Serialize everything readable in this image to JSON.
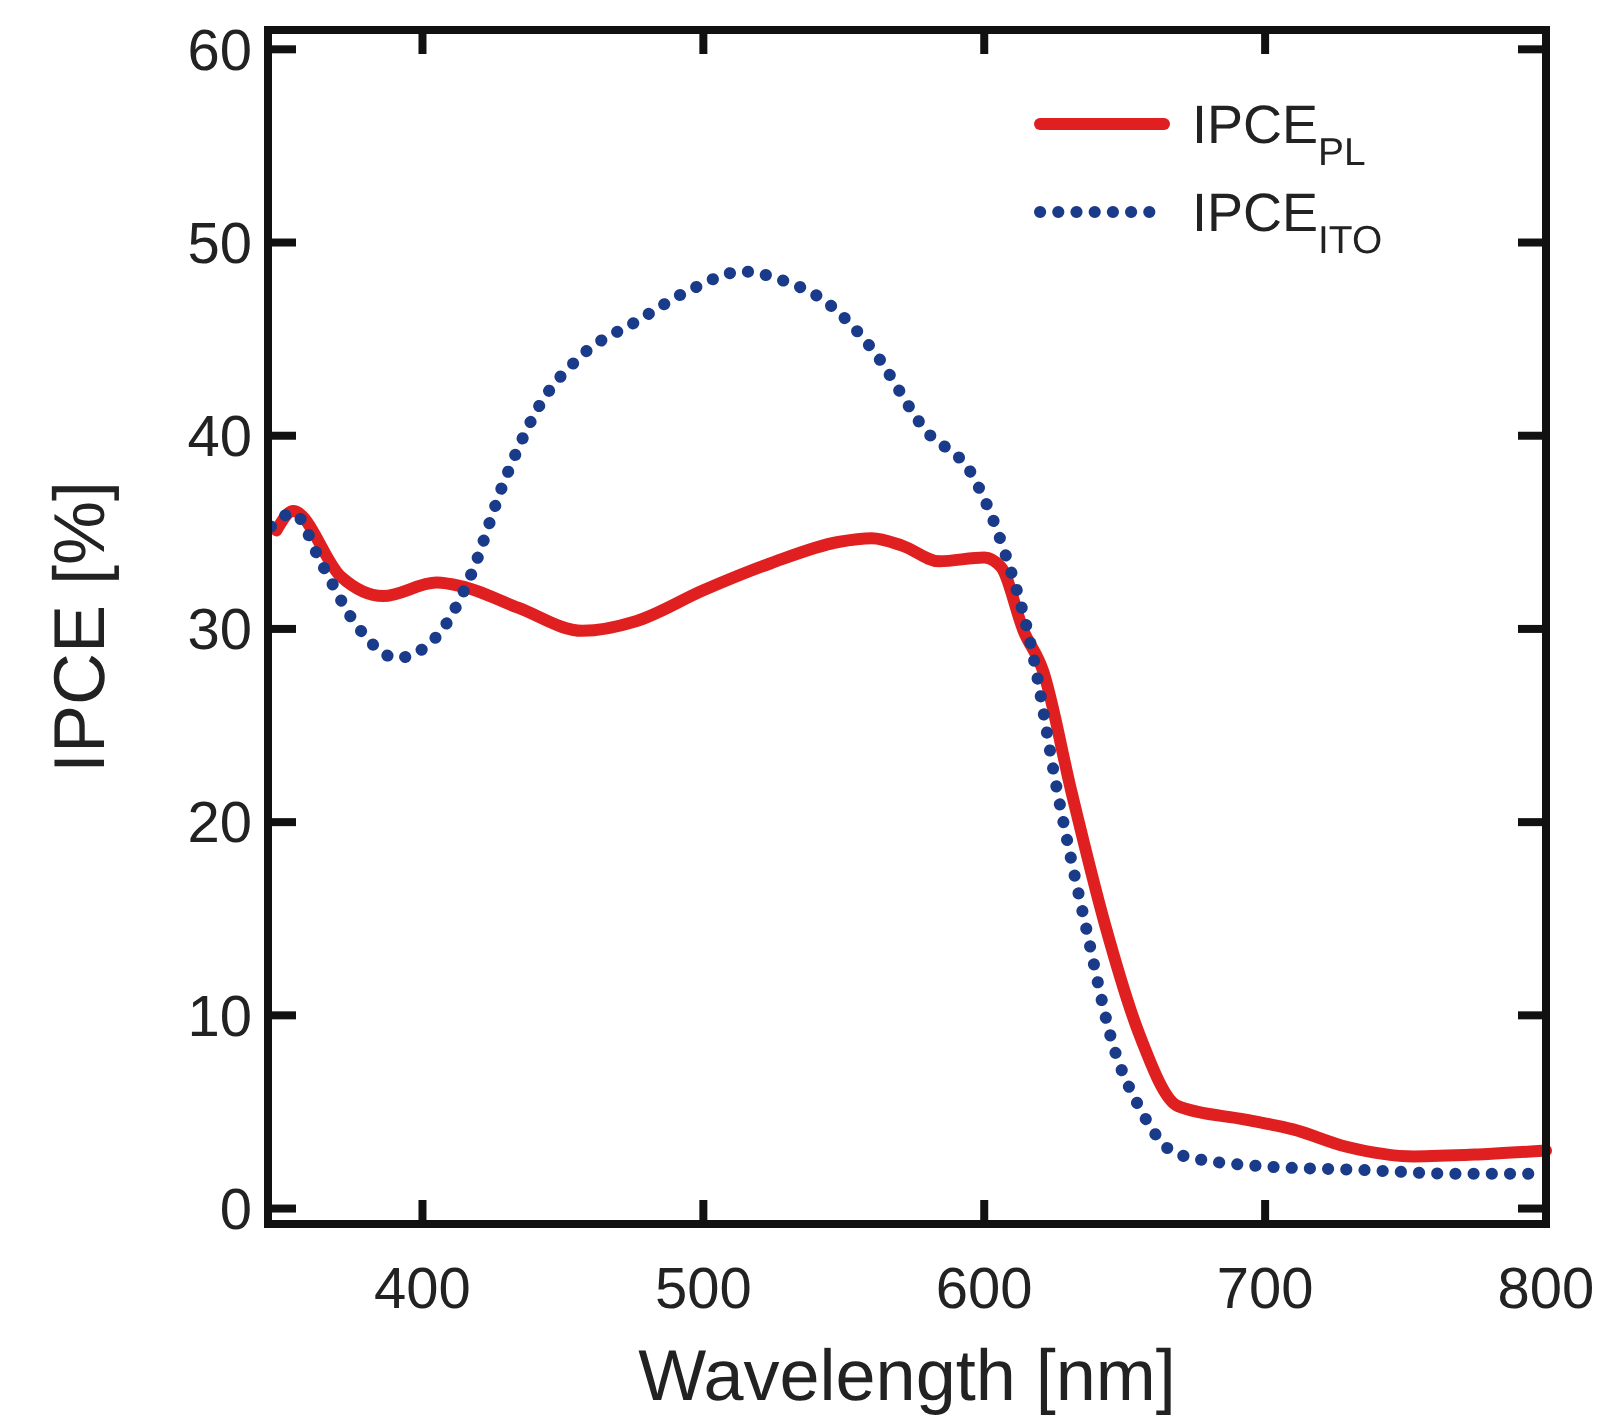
{
  "chart_data": {
    "type": "line",
    "xlabel": "Wavelength [nm]",
    "ylabel": "IPCE [%]",
    "xlim": [
      345,
      800
    ],
    "ylim": [
      -0.8,
      61
    ],
    "xticks": [
      400,
      500,
      600,
      700,
      800
    ],
    "yticks": [
      0,
      10,
      20,
      30,
      40,
      50,
      60
    ],
    "legend": "top right",
    "grid": false,
    "series": [
      {
        "name": "IPCE$_{PL}$",
        "color": "#e02020",
        "line_style": "solid",
        "x": [
          348,
          354,
          371,
          386,
          405,
          414,
          434,
          457,
          476,
          500,
          524,
          548,
          560,
          571,
          584,
          600,
          606,
          614,
          621,
          631,
          643,
          655,
          669,
          693,
          710,
          729,
          753,
          776,
          800
        ],
        "values": [
          35.1,
          36.1,
          32.7,
          31.7,
          32.4,
          32.2,
          31.1,
          29.9,
          30.4,
          32,
          33.4,
          34.5,
          34.7,
          34.3,
          33.5,
          33.7,
          33.2,
          29.9,
          27.8,
          21.6,
          14.7,
          9.1,
          5.3,
          4.6,
          4.1,
          3.2,
          2.7,
          2.8,
          3.0
        ]
      },
      {
        "name": "IPCE$_{ITO}$",
        "color": "#1a3a8a",
        "line_style": "dotted",
        "x": [
          346,
          354,
          364,
          376,
          391,
          405,
          417,
          429,
          441,
          457,
          476,
          496,
          514,
          529,
          543,
          560,
          579,
          596,
          607,
          617,
          626,
          636,
          646,
          655,
          669,
          698,
          734,
          769,
          800
        ],
        "values": [
          35.3,
          36,
          33.4,
          30.3,
          28.5,
          29.6,
          32.7,
          37.6,
          41.4,
          44.2,
          45.9,
          47.6,
          48.5,
          48,
          47,
          44.5,
          40.3,
          37.9,
          34.1,
          28.9,
          21.6,
          14.7,
          8.4,
          5.3,
          2.8,
          2.2,
          2.0,
          1.8,
          1.8
        ]
      }
    ]
  }
}
